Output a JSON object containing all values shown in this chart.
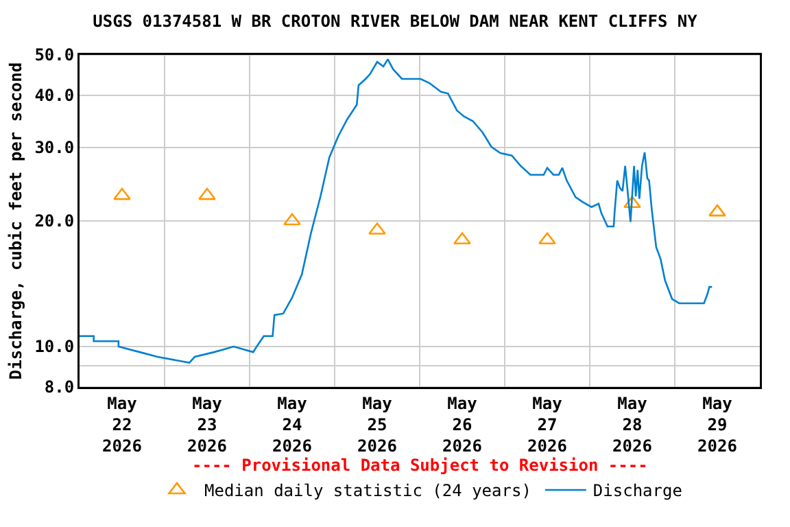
{
  "chart_data": {
    "type": "line",
    "title": "USGS 01374581 W BR CROTON RIVER BELOW DAM NEAR KENT CLIFFS NY",
    "ylabel": "Discharge, cubic feet per second",
    "annotations": [
      "---- Provisional Data Subject to Revision ----"
    ],
    "log": "y",
    "grid": true,
    "legend": "bottom",
    "xlim": [
      "2026-05-22",
      "2026-05-30"
    ],
    "xticks": [
      {
        "value": "2026-05-22T12:00",
        "label": "May\n22\n2026"
      },
      {
        "value": "2026-05-23T00:00",
        "label": null
      },
      {
        "value": "2026-05-23T12:00",
        "label": "May\n23\n2026"
      },
      {
        "value": "2026-05-24T00:00",
        "label": null
      },
      {
        "value": "2026-05-24T12:00",
        "label": "May\n24\n2026"
      },
      {
        "value": "2026-05-25T00:00",
        "label": null
      },
      {
        "value": "2026-05-25T12:00",
        "label": "May\n25\n2026"
      },
      {
        "value": "2026-05-26T00:00",
        "label": null
      },
      {
        "value": "2026-05-26T12:00",
        "label": "May\n26\n2026"
      },
      {
        "value": "2026-05-27T00:00",
        "label": null
      },
      {
        "value": "2026-05-27T12:00",
        "label": "May\n27\n2026"
      },
      {
        "value": "2026-05-28T00:00",
        "label": null
      },
      {
        "value": "2026-05-28T12:00",
        "label": "May\n28\n2026"
      },
      {
        "value": "2026-05-29T00:00",
        "label": null
      },
      {
        "value": "2026-05-29T12:00",
        "label": "May\n29\n2026"
      }
    ],
    "ylim": [
      8,
      50
    ],
    "yticks": [
      {
        "value": 8,
        "label": "8.0"
      },
      {
        "value": 9,
        "label": null
      },
      {
        "value": 10,
        "label": "10.0"
      },
      {
        "value": 20,
        "label": "20.0"
      },
      {
        "value": 30,
        "label": "30.0"
      },
      {
        "value": 40,
        "label": "40.0"
      },
      {
        "value": 50,
        "label": "50.0"
      }
    ],
    "series": [
      {
        "name": "Median daily statistic (24 years)",
        "type": "scatter",
        "marker": "triangle",
        "color": "#ff9900",
        "x": [
          "2026-05-22T12:00",
          "2026-05-23T12:00",
          "2026-05-24T12:00",
          "2026-05-25T12:00",
          "2026-05-26T12:00",
          "2026-05-27T12:00",
          "2026-05-28T12:00",
          "2026-05-29T12:00"
        ],
        "values": [
          23,
          23,
          20,
          19,
          18,
          18,
          22,
          21
        ]
      },
      {
        "name": "Discharge",
        "type": "line",
        "marker": "none",
        "line_style": "solid",
        "color": "#0080d0",
        "x": [
          "2026-05-22T00:00",
          "2026-05-22T04:00",
          "2026-05-22T04:00",
          "2026-05-22T11:00",
          "2026-05-22T11:00",
          "2026-05-22T17:00",
          "2026-05-22T22:00",
          "2026-05-23T07:00",
          "2026-05-23T08:30",
          "2026-05-23T14:00",
          "2026-05-23T19:30",
          "2026-05-24T01:00",
          "2026-05-24T02:00",
          "2026-05-24T04:00",
          "2026-05-24T06:30",
          "2026-05-24T07:00",
          "2026-05-24T09:30",
          "2026-05-24T12:00",
          "2026-05-24T14:45",
          "2026-05-24T17:15",
          "2026-05-24T20:00",
          "2026-05-24T22:30",
          "2026-05-25T01:00",
          "2026-05-25T03:30",
          "2026-05-25T06:15",
          "2026-05-25T06:45",
          "2026-05-25T08:45",
          "2026-05-25T10:00",
          "2026-05-25T12:00",
          "2026-05-25T13:45",
          "2026-05-25T15:00",
          "2026-05-25T16:30",
          "2026-05-25T19:00",
          "2026-05-26T00:15",
          "2026-05-26T02:45",
          "2026-05-26T06:00",
          "2026-05-26T08:00",
          "2026-05-26T10:30",
          "2026-05-26T12:30",
          "2026-05-26T15:00",
          "2026-05-26T17:45",
          "2026-05-26T20:15",
          "2026-05-26T22:45",
          "2026-05-27T02:00",
          "2026-05-27T04:30",
          "2026-05-27T07:15",
          "2026-05-27T11:00",
          "2026-05-27T12:00",
          "2026-05-27T13:45",
          "2026-05-27T15:15",
          "2026-05-27T16:15",
          "2026-05-27T17:30",
          "2026-05-27T20:00",
          "2026-05-27T22:00",
          "2026-05-28T00:30",
          "2026-05-28T02:30",
          "2026-05-28T03:15",
          "2026-05-28T05:00",
          "2026-05-28T06:45",
          "2026-05-28T07:00",
          "2026-05-28T07:45",
          "2026-05-28T08:30",
          "2026-05-28T09:15",
          "2026-05-28T10:00",
          "2026-05-28T10:30",
          "2026-05-28T11:30",
          "2026-05-28T12:30",
          "2026-05-28T13:00",
          "2026-05-28T13:30",
          "2026-05-28T14:00",
          "2026-05-28T14:45",
          "2026-05-28T15:30",
          "2026-05-28T16:15",
          "2026-05-28T16:45",
          "2026-05-28T17:30",
          "2026-05-28T18:45",
          "2026-05-28T20:00",
          "2026-05-28T21:15",
          "2026-05-28T23:15",
          "2026-05-29T01:15",
          "2026-05-29T08:15",
          "2026-05-29T09:15",
          "2026-05-29T09:45",
          "2026-05-29T10:30"
        ],
        "values": [
          10.6,
          10.6,
          10.3,
          10.3,
          10.0,
          9.7,
          9.45,
          9.15,
          9.45,
          9.7,
          10.0,
          9.7,
          10.0,
          10.6,
          10.6,
          11.9,
          12.0,
          13.1,
          14.9,
          18.6,
          22.9,
          28.4,
          31.9,
          35,
          38,
          42.3,
          43.8,
          45,
          48.1,
          46.9,
          48.8,
          46.2,
          43.8,
          43.8,
          42.8,
          40.8,
          40.4,
          36.8,
          35.6,
          34.7,
          32.6,
          30.1,
          29.1,
          28.7,
          27.1,
          25.8,
          25.8,
          26.8,
          25.8,
          25.8,
          26.8,
          25,
          22.8,
          22.2,
          21.6,
          22,
          20.9,
          19.4,
          19.4,
          20.9,
          25,
          24,
          23.6,
          27.1,
          24.5,
          19.9,
          27.1,
          22.9,
          26.5,
          22.6,
          27.1,
          29.2,
          25.3,
          25,
          21.3,
          17.3,
          16.2,
          14.4,
          13,
          12.7,
          12.7,
          13.4,
          13.9,
          13.9
        ]
      }
    ]
  }
}
